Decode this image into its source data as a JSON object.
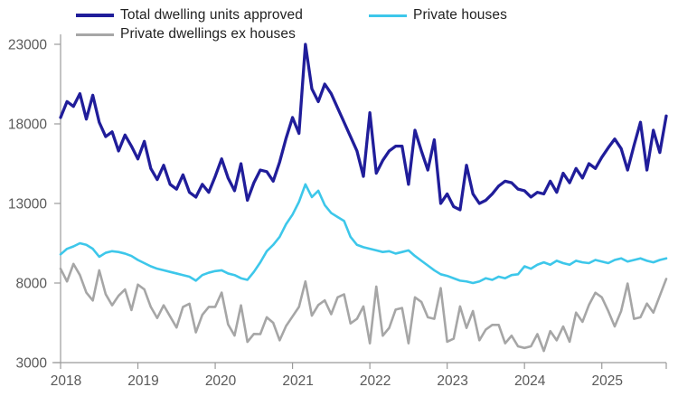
{
  "chart_data": {
    "type": "line",
    "title": "",
    "xlabel": "",
    "ylabel": "",
    "x_unit": "month",
    "x_range": [
      "2018-01",
      "2025-11"
    ],
    "x_tick_labels": [
      "2018",
      "2019",
      "2020",
      "2021",
      "2022",
      "2023",
      "2024",
      "2025"
    ],
    "y_tick_values": [
      23000,
      18000,
      13000,
      8000,
      3000
    ],
    "y_tick_labels": [
      "23000",
      "18000",
      "13000",
      "8000",
      "3000"
    ],
    "ylim": [
      3000,
      23000
    ],
    "grid": false,
    "legend_position": "top-left",
    "axis_color": "#9b9b9b",
    "tick_label_color": "#595959",
    "series": [
      {
        "name": "Total dwelling units approved",
        "color": "#201d9a",
        "values": [
          18400,
          19400,
          19100,
          19900,
          18300,
          19800,
          18100,
          17200,
          17500,
          16300,
          17300,
          16600,
          15800,
          16900,
          15200,
          14500,
          15400,
          14200,
          13900,
          14800,
          13700,
          13400,
          14200,
          13700,
          14700,
          15800,
          14600,
          13800,
          15500,
          13200,
          14300,
          15100,
          15000,
          14400,
          15600,
          17100,
          18400,
          17400,
          23000,
          20200,
          19400,
          20500,
          19900,
          19000,
          18100,
          17200,
          16300,
          14700,
          18700,
          14900,
          15700,
          16300,
          16600,
          16600,
          14200,
          17600,
          16300,
          15100,
          17000,
          13000,
          13600,
          12800,
          12600,
          15400,
          13600,
          13000,
          13200,
          13600,
          14100,
          14400,
          14300,
          13900,
          13800,
          13400,
          13700,
          13600,
          14400,
          13700,
          14900,
          14300,
          15200,
          14600,
          15500,
          15200,
          15900,
          16500,
          17050,
          16450,
          15100,
          16650,
          18100,
          15100,
          17600,
          16200,
          18500
        ]
      },
      {
        "name": "Private houses",
        "color": "#3dc7ea",
        "values": [
          9800,
          10150,
          10300,
          10500,
          10400,
          10150,
          9650,
          9900,
          10000,
          9950,
          9850,
          9700,
          9450,
          9250,
          9050,
          8900,
          8800,
          8700,
          8600,
          8500,
          8400,
          8150,
          8500,
          8650,
          8750,
          8800,
          8600,
          8500,
          8300,
          8200,
          8700,
          9300,
          10000,
          10400,
          10900,
          11700,
          12300,
          13100,
          14200,
          13400,
          13800,
          12900,
          12400,
          12150,
          11900,
          10900,
          10400,
          10250,
          10150,
          10050,
          9950,
          10000,
          9850,
          9950,
          10050,
          9700,
          9400,
          9100,
          8800,
          8550,
          8450,
          8300,
          8150,
          8100,
          8000,
          8100,
          8300,
          8200,
          8400,
          8300,
          8500,
          8550,
          9050,
          8900,
          9150,
          9300,
          9150,
          9400,
          9250,
          9150,
          9400,
          9300,
          9250,
          9450,
          9350,
          9250,
          9450,
          9550,
          9350,
          9450,
          9550,
          9400,
          9300,
          9450,
          9550
        ]
      },
      {
        "name": "Private dwellings ex houses",
        "color": "#a6a6a6",
        "values": [
          8900,
          8100,
          9200,
          8500,
          7400,
          6900,
          8800,
          7300,
          6600,
          7200,
          7600,
          6300,
          7900,
          7600,
          6500,
          5800,
          6600,
          5900,
          5200,
          6500,
          6700,
          4900,
          6000,
          6500,
          6500,
          7400,
          5400,
          4700,
          6600,
          4300,
          4800,
          4790,
          5850,
          5500,
          4400,
          5300,
          5900,
          6500,
          8100,
          5950,
          6620,
          6910,
          6040,
          7100,
          7290,
          5460,
          5750,
          6530,
          4210,
          7780,
          4690,
          5180,
          6330,
          6430,
          4210,
          7100,
          6810,
          5850,
          5750,
          7680,
          4310,
          4500,
          6530,
          5180,
          6240,
          4400,
          5080,
          5370,
          5370,
          4210,
          4690,
          4020,
          3920,
          4020,
          4790,
          3730,
          4980,
          4400,
          5270,
          4310,
          6140,
          5560,
          6620,
          7390,
          7100,
          6240,
          5270,
          6240,
          7970,
          5750,
          5850,
          6710,
          6140,
          7200,
          8260
        ]
      }
    ]
  }
}
